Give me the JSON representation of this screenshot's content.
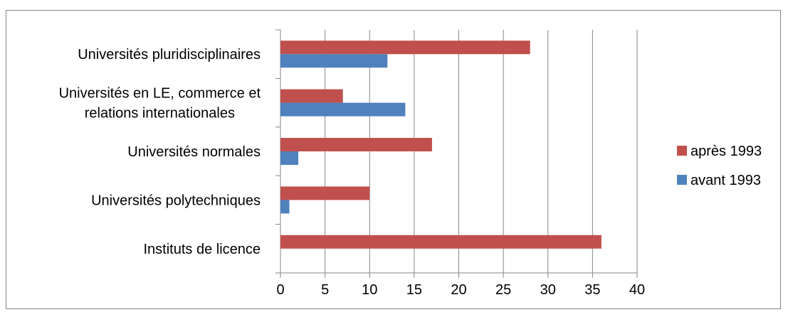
{
  "chart_data": {
    "type": "bar",
    "orientation": "horizontal",
    "categories": [
      [
        "Universités pluridisciplinaires"
      ],
      [
        "Universités en LE, commerce et",
        "relations internationales"
      ],
      [
        "Universités normales"
      ],
      [
        "Universités polytechniques"
      ],
      [
        "Instituts de licence"
      ]
    ],
    "series": [
      {
        "name": "après 1993",
        "color": "#c0504d",
        "values": [
          28,
          7,
          17,
          10,
          36
        ]
      },
      {
        "name": "avant 1993",
        "color": "#4f81bd",
        "values": [
          12,
          14,
          2,
          1,
          0
        ]
      }
    ],
    "xlim": [
      0,
      40
    ],
    "xticks": [
      0,
      5,
      10,
      15,
      20,
      25,
      30,
      35,
      40
    ],
    "grid": true,
    "legend_position": "right",
    "gridline_color": "#868686",
    "title": "",
    "xlabel": "",
    "ylabel": ""
  }
}
